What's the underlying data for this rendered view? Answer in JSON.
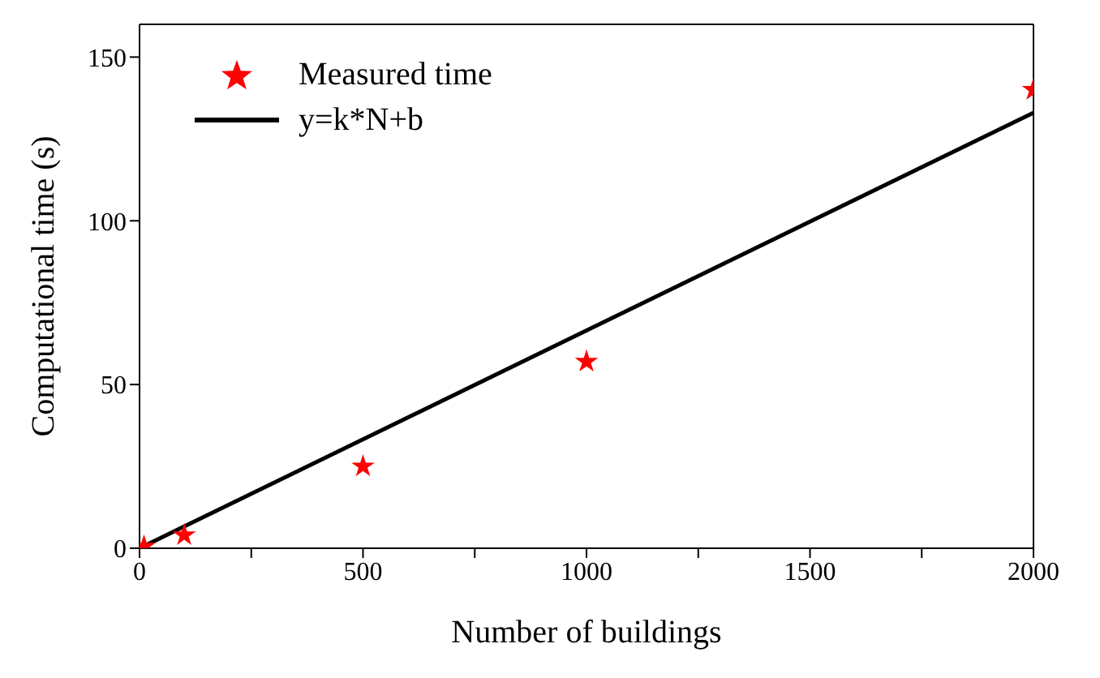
{
  "chart_data": {
    "type": "scatter",
    "xlabel": "Number of buildings",
    "ylabel": "Computational time (s)",
    "xlim": [
      0,
      2000
    ],
    "ylim": [
      0,
      160
    ],
    "xticks": [
      0,
      {
        "value": 250,
        "label": null
      },
      500,
      {
        "value": 750,
        "label": null
      },
      1000,
      {
        "value": 1250,
        "label": null
      },
      1500,
      {
        "value": 1750,
        "label": null
      },
      2000
    ],
    "yticks": [
      0,
      50,
      100,
      150
    ],
    "marker": "star",
    "legend": "top left",
    "grid": false,
    "series": [
      {
        "name": "Measured time",
        "color": "#ff0000",
        "x": [
          10,
          100,
          500,
          1000,
          2000
        ],
        "values": [
          0.5,
          4,
          25,
          57,
          140
        ]
      },
      {
        "name": "y=k*N+b",
        "type": "line",
        "color": "#000000",
        "line_style": "solid",
        "marker": "none",
        "x": [
          0,
          2000
        ],
        "values": [
          0,
          133
        ]
      }
    ]
  }
}
